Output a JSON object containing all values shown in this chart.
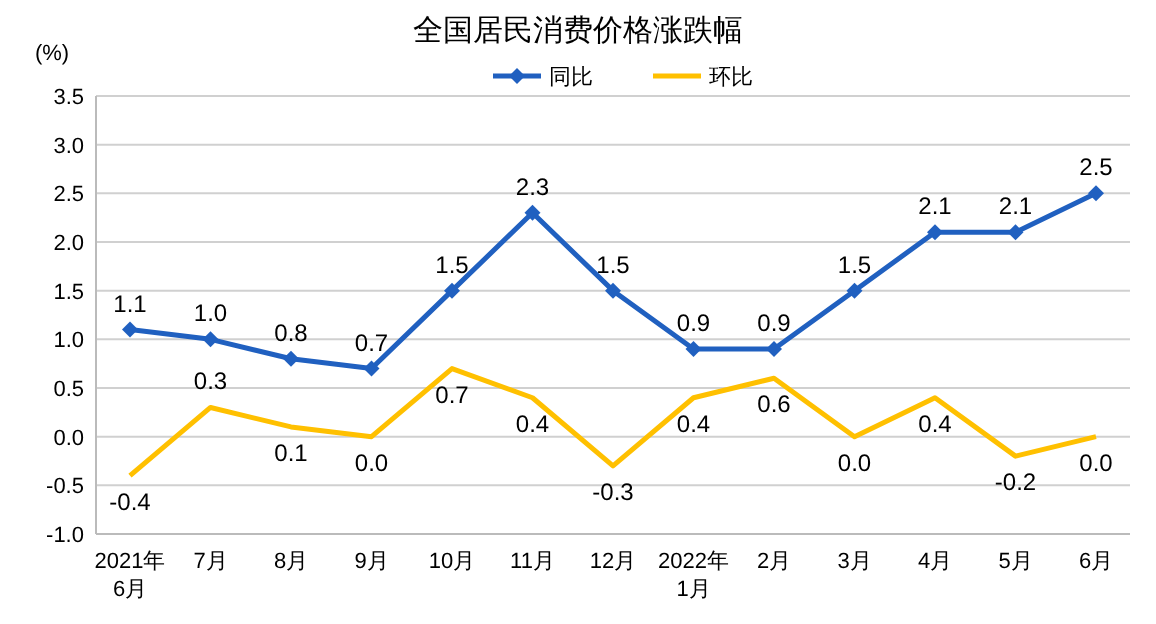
{
  "chart_data": {
    "type": "line",
    "title": "全国居民消费价格涨跌幅",
    "ylabel": "(%)",
    "categories": [
      "2021年\n6月",
      "7月",
      "8月",
      "9月",
      "10月",
      "11月",
      "12月",
      "2022年\n1月",
      "2月",
      "3月",
      "4月",
      "5月",
      "6月"
    ],
    "series": [
      {
        "name": "同比",
        "color": "#2060c0",
        "marker": "diamond",
        "values": [
          1.1,
          1.0,
          0.8,
          0.7,
          1.5,
          2.3,
          1.5,
          0.9,
          0.9,
          1.5,
          2.1,
          2.1,
          2.5
        ],
        "value_labels": [
          "1.1",
          "1.0",
          "0.8",
          "0.7",
          "1.5",
          "2.3",
          "1.5",
          "0.9",
          "0.9",
          "1.5",
          "2.1",
          "2.1",
          "2.5"
        ]
      },
      {
        "name": "环比",
        "color": "#ffc000",
        "marker": "none",
        "values": [
          -0.4,
          0.3,
          0.1,
          0.0,
          0.7,
          0.4,
          -0.3,
          0.4,
          0.6,
          0.0,
          0.4,
          -0.2,
          0.0
        ],
        "value_labels": [
          "-0.4",
          "0.3",
          "0.1",
          "0.0",
          "0.7",
          "0.4",
          "-0.3",
          "0.4",
          "0.6",
          "0.0",
          "0.4",
          "-0.2",
          "0.0"
        ]
      }
    ],
    "ylim": [
      -1.0,
      3.5
    ],
    "yticks": [
      {
        "value": -1,
        "label": "-1.0"
      },
      {
        "value": -0.5,
        "label": "-0.5"
      },
      {
        "value": 0,
        "label": "0.0"
      },
      {
        "value": 0.5,
        "label": "0.5"
      },
      {
        "value": 1,
        "label": "1.0"
      },
      {
        "value": 1.5,
        "label": "1.5"
      },
      {
        "value": 2,
        "label": "2.0"
      },
      {
        "value": 2.5,
        "label": "2.5"
      },
      {
        "value": 3,
        "label": "3.0"
      },
      {
        "value": 3.5,
        "label": "3.5"
      }
    ],
    "grid": "y",
    "legend": "top",
    "line_style": "solid"
  }
}
